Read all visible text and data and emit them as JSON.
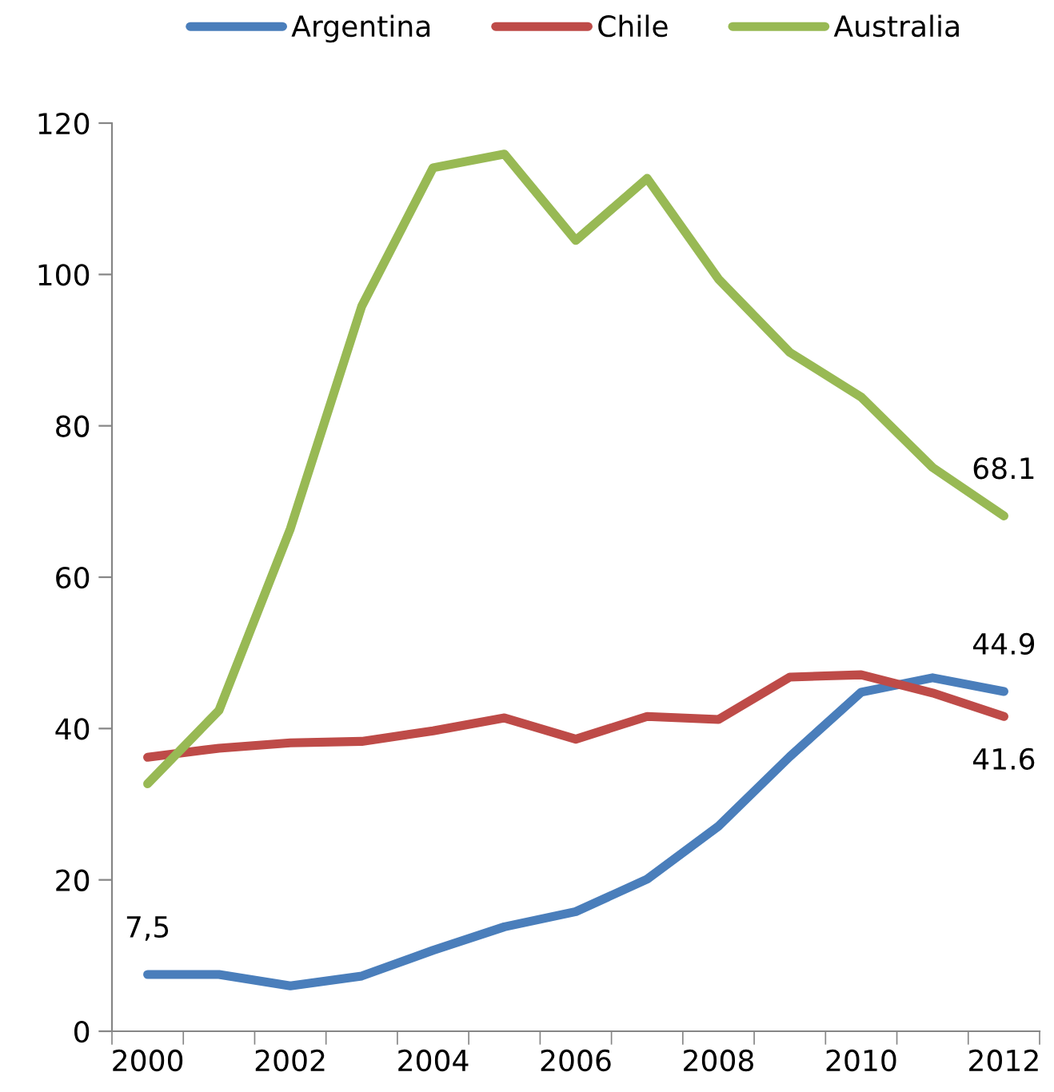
{
  "chart_data": {
    "type": "line",
    "categories": [
      "2000",
      null,
      "2002",
      null,
      "2004",
      null,
      "2006",
      null,
      "2008",
      null,
      "2010",
      null,
      "2012"
    ],
    "series": [
      {
        "name": "Argentina",
        "color": "#4a7ebb",
        "values": [
          7.5,
          7.5,
          6.0,
          7.3,
          10.7,
          13.8,
          15.8,
          20.1,
          27.1,
          36.3,
          44.8,
          46.7,
          44.9
        ],
        "value_labels": [
          "7,5",
          null,
          null,
          null,
          null,
          null,
          null,
          null,
          null,
          null,
          null,
          null,
          "44.9"
        ]
      },
      {
        "name": "Chile",
        "color": "#be4b48",
        "values": [
          36.2,
          37.4,
          38.1,
          38.3,
          39.7,
          41.4,
          38.6,
          41.6,
          41.2,
          46.8,
          47.1,
          44.7,
          41.6
        ],
        "value_labels": [
          null,
          null,
          null,
          null,
          null,
          null,
          null,
          null,
          null,
          null,
          null,
          null,
          "41.6"
        ]
      },
      {
        "name": "Australia",
        "color": "#98b954",
        "values": [
          32.7,
          42.4,
          66.4,
          95.8,
          114.1,
          115.9,
          104.5,
          112.7,
          99.4,
          89.7,
          83.8,
          74.5,
          68.1
        ],
        "value_labels": [
          null,
          null,
          null,
          null,
          null,
          null,
          null,
          null,
          null,
          null,
          null,
          null,
          "68.1"
        ]
      }
    ],
    "ylim": [
      0,
      120
    ],
    "yticks": [
      0,
      20,
      40,
      60,
      80,
      100,
      120
    ],
    "grid": false,
    "legend": "top",
    "marker": "none",
    "line_style": "solid"
  }
}
